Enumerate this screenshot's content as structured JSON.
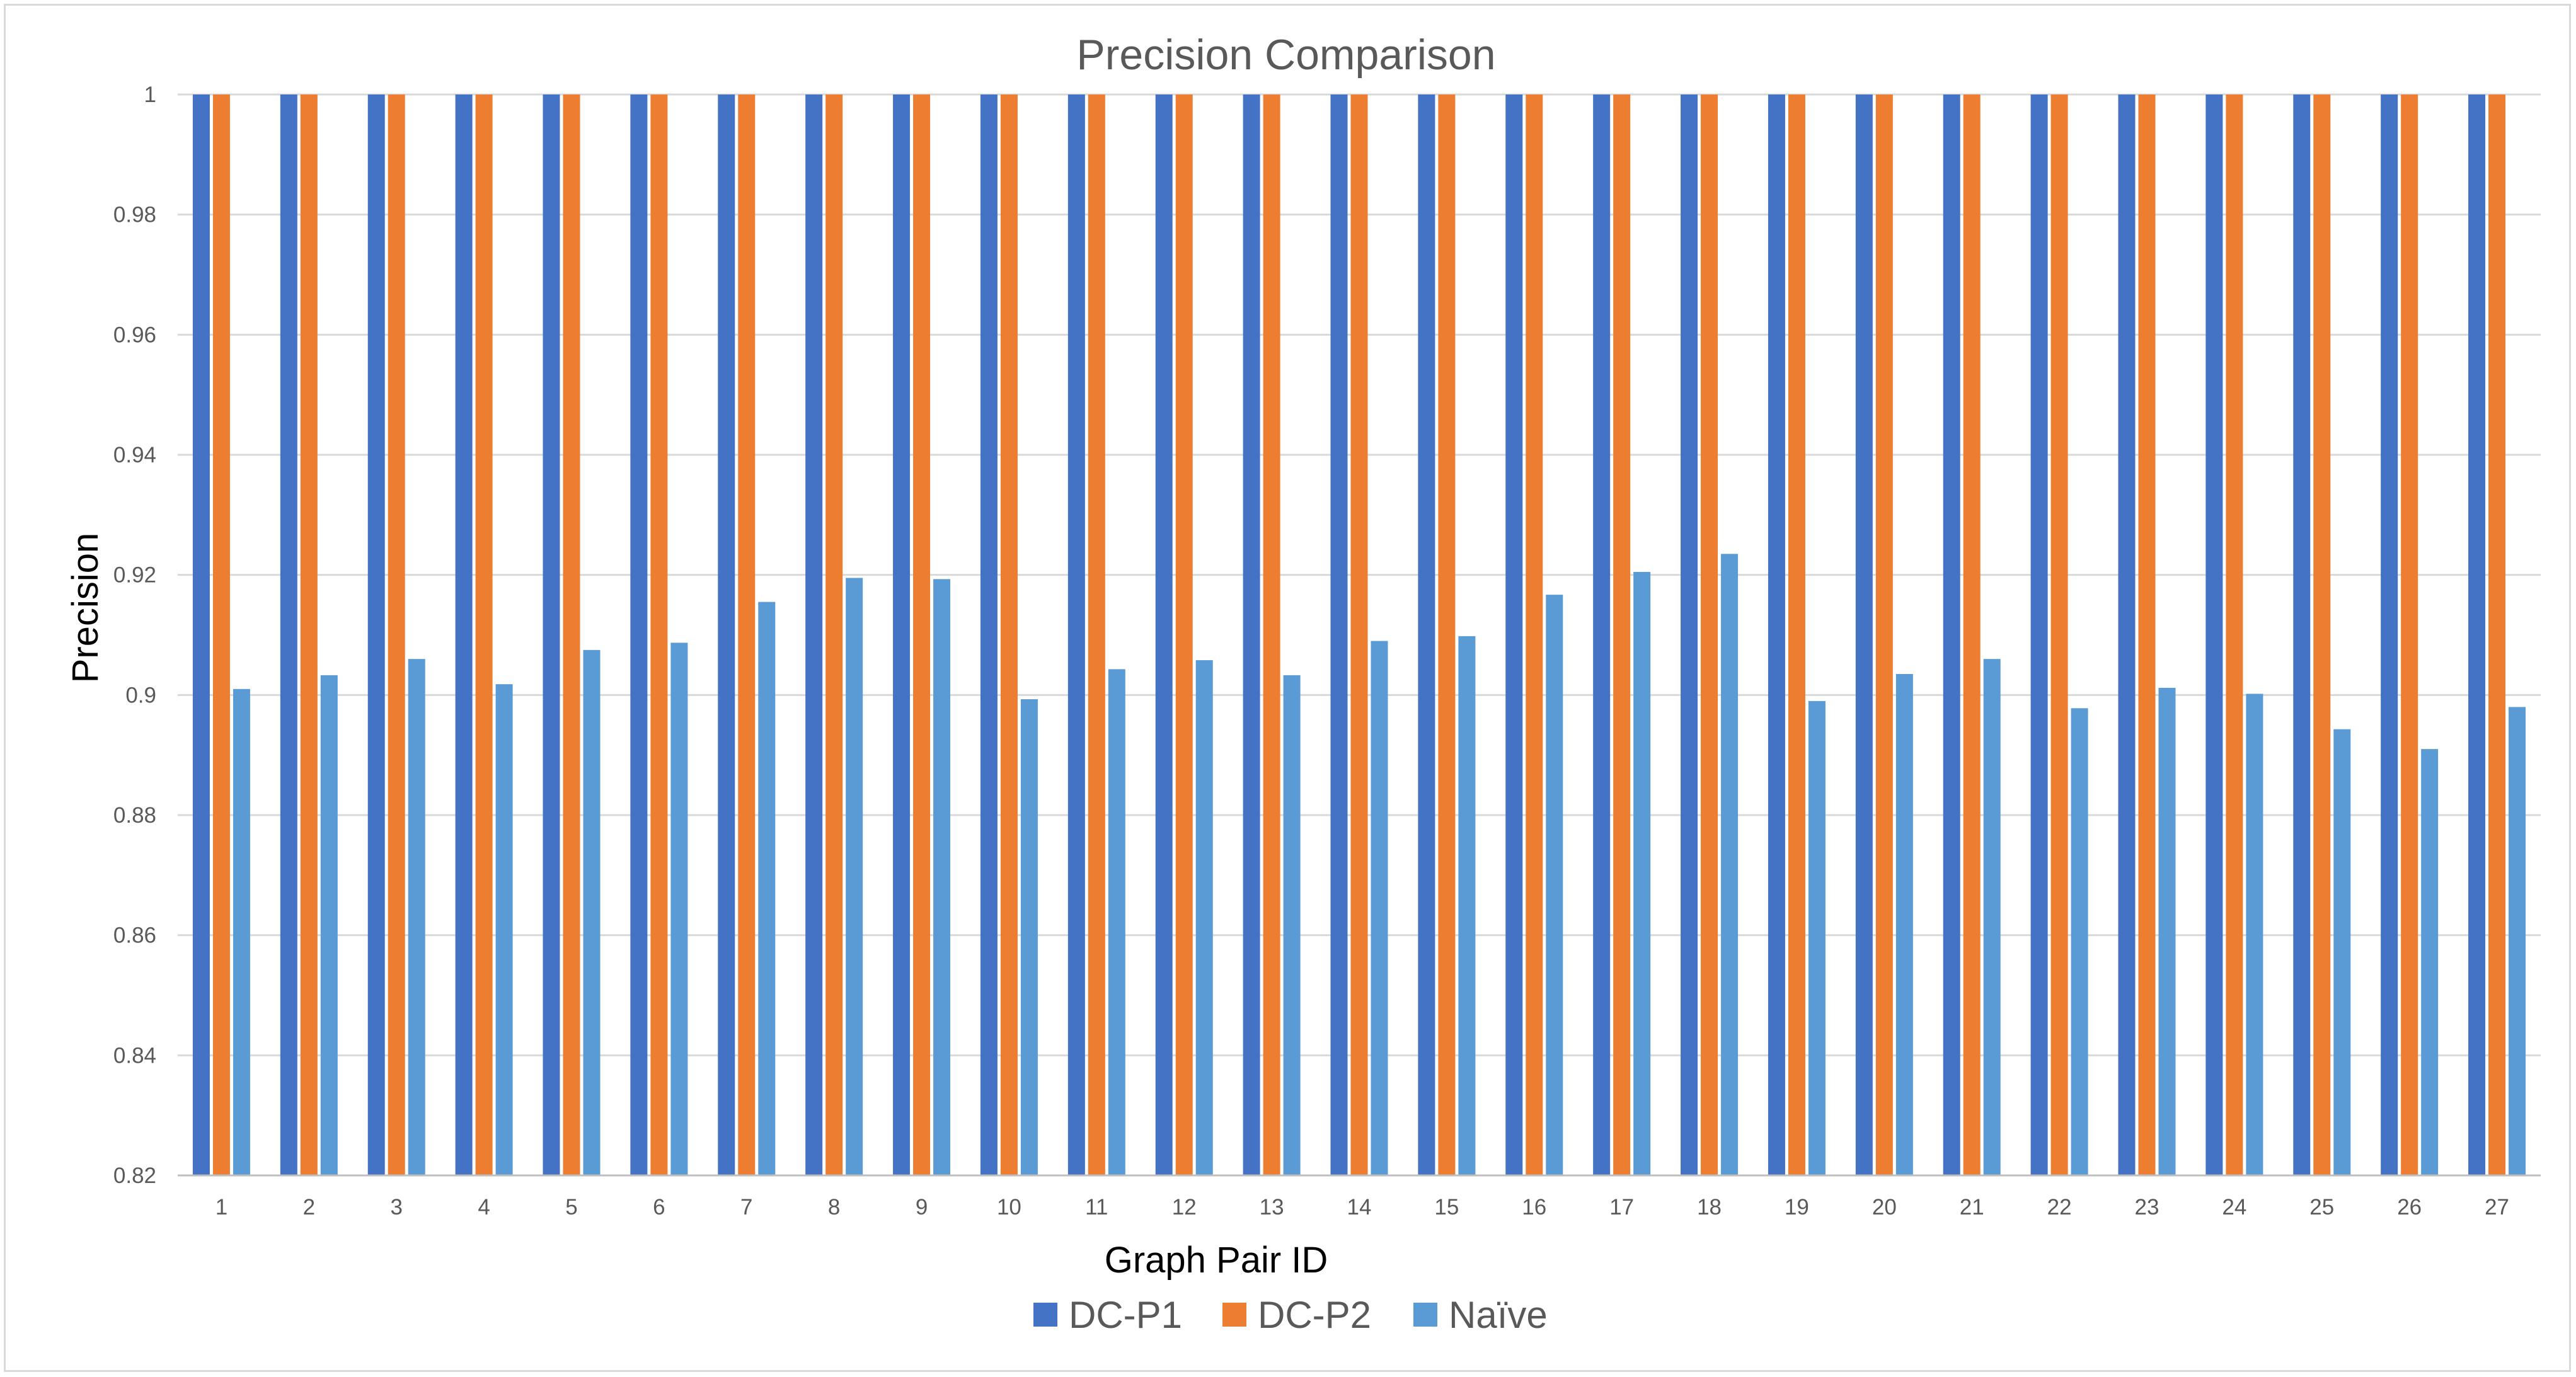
{
  "chart_data": {
    "type": "bar",
    "title": "Precision Comparison",
    "xlabel": "Graph Pair ID",
    "ylabel": "Precision",
    "ylim": [
      0.82,
      1
    ],
    "yticks": [
      0.82,
      0.84,
      0.86,
      0.88,
      0.9,
      0.92,
      0.94,
      0.96,
      0.98,
      1
    ],
    "ytick_labels": [
      "0.82",
      "0.84",
      "0.86",
      "0.88",
      "0.9",
      "0.92",
      "0.94",
      "0.96",
      "0.98",
      "1"
    ],
    "grid": true,
    "legend_position": "bottom",
    "categories": [
      "1",
      "2",
      "3",
      "4",
      "5",
      "6",
      "7",
      "8",
      "9",
      "10",
      "11",
      "12",
      "13",
      "14",
      "15",
      "16",
      "17",
      "18",
      "19",
      "20",
      "21",
      "22",
      "23",
      "24",
      "25",
      "26",
      "27"
    ],
    "series": [
      {
        "name": "DC-P1",
        "color": "#4472c4",
        "values": [
          1,
          1,
          1,
          1,
          1,
          1,
          1,
          1,
          1,
          1,
          1,
          1,
          1,
          1,
          1,
          1,
          1,
          1,
          1,
          1,
          1,
          1,
          1,
          1,
          1,
          1,
          1
        ]
      },
      {
        "name": "DC-P2",
        "color": "#ed7d31",
        "values": [
          1,
          1,
          1,
          1,
          1,
          1,
          1,
          1,
          1,
          1,
          1,
          1,
          1,
          1,
          1,
          1,
          1,
          1,
          1,
          1,
          1,
          1,
          1,
          1,
          1,
          1,
          1
        ]
      },
      {
        "name": "Naïve",
        "color": "#5b9bd5",
        "values": [
          0.901,
          0.9033,
          0.906,
          0.9018,
          0.9075,
          0.9087,
          0.9155,
          0.9195,
          0.9193,
          0.8993,
          0.9043,
          0.9058,
          0.9033,
          0.909,
          0.9098,
          0.9167,
          0.9205,
          0.9235,
          0.899,
          0.9035,
          0.906,
          0.8978,
          0.9012,
          0.9002,
          0.8943,
          0.891,
          0.898
        ]
      }
    ]
  }
}
